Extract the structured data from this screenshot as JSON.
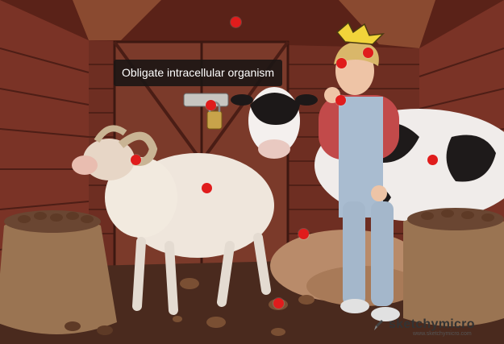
{
  "tooltip": {
    "text": "Obligate intracellular organism"
  },
  "watermark": {
    "brand": "sketchymicro",
    "url": "www.sketchymicro.com"
  },
  "hotspots": [
    {
      "name": "hotspot-roof"
    },
    {
      "name": "hotspot-farmer-head"
    },
    {
      "name": "hotspot-headache-symbol"
    },
    {
      "name": "hotspot-farmer-hand"
    },
    {
      "name": "hotspot-padlock"
    },
    {
      "name": "hotspot-sheep-head"
    },
    {
      "name": "hotspot-sheep-body"
    },
    {
      "name": "hotspot-cow-body"
    },
    {
      "name": "hotspot-hay-pile"
    },
    {
      "name": "hotspot-floor-droppings"
    }
  ]
}
